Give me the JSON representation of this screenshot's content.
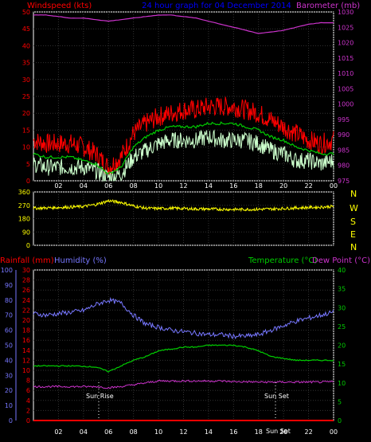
{
  "header": {
    "left": "Windspeed (kts)",
    "center": "24 hour graph for  04 December 2014",
    "right": "Barometer (mb)"
  },
  "colors": {
    "wind": "#ff0000",
    "avgwind": "#00cc00",
    "gust": "#ccffcc",
    "baro": "#cc33cc",
    "dir": "#ffff00",
    "rain": "#ff0000",
    "hum": "#7777ff",
    "temp": "#00cc00",
    "dew": "#cc33cc",
    "grid": "#333333",
    "tick": "#ffffff"
  },
  "x_ticks": [
    "02",
    "04",
    "06",
    "08",
    "10",
    "12",
    "14",
    "16",
    "18",
    "20",
    "22",
    "00"
  ],
  "chart_data": [
    {
      "type": "line",
      "panel": "wind",
      "title": "24 hour graph for  04 December 2014",
      "ylabel": "Windspeed (kts)",
      "ylabel_right": "Barometer (mb)",
      "yticks_left": [
        0,
        5,
        10,
        15,
        20,
        25,
        30,
        35,
        40,
        45,
        50
      ],
      "yticks_right": [
        975,
        980,
        985,
        990,
        995,
        1000,
        1005,
        1010,
        1015,
        1020,
        1025,
        1030
      ],
      "ylim": [
        0,
        50
      ],
      "ylim_right": [
        975,
        1030
      ],
      "x": [
        "00:00",
        "01:00",
        "02:00",
        "03:00",
        "04:00",
        "05:00",
        "06:00",
        "07:00",
        "08:00",
        "09:00",
        "10:00",
        "11:00",
        "12:00",
        "13:00",
        "14:00",
        "15:00",
        "16:00",
        "17:00",
        "18:00",
        "19:00",
        "20:00",
        "21:00",
        "22:00",
        "23:00",
        "24:00"
      ],
      "series": [
        {
          "key": "max",
          "values": [
            12,
            11,
            11,
            11,
            10,
            8,
            4,
            7,
            14,
            17,
            19,
            20,
            21,
            21,
            22,
            22,
            22,
            21,
            20,
            18,
            16,
            14,
            12,
            11,
            12
          ]
        },
        {
          "key": "avg",
          "values": [
            8,
            7,
            7,
            7,
            6,
            5,
            2,
            4,
            10,
            13,
            15,
            16,
            16,
            16,
            17,
            17,
            17,
            16,
            15,
            13,
            12,
            10,
            9,
            8,
            8
          ]
        },
        {
          "key": "low",
          "values": [
            5,
            4,
            4,
            4,
            4,
            3,
            1,
            2,
            7,
            9,
            11,
            12,
            12,
            12,
            13,
            12,
            12,
            12,
            11,
            9,
            8,
            6,
            6,
            5,
            6
          ]
        },
        {
          "key": "baro",
          "values": [
            1029,
            1029,
            1028.5,
            1028,
            1028,
            1027.5,
            1027,
            1027.5,
            1028,
            1028.5,
            1029,
            1029,
            1028.5,
            1028,
            1027,
            1026,
            1025,
            1024,
            1023,
            1023.5,
            1024,
            1025,
            1026,
            1026.5,
            1026.5
          ]
        }
      ]
    },
    {
      "type": "line",
      "panel": "direction",
      "yticks": [
        0,
        90,
        180,
        270,
        360
      ],
      "ylim": [
        0,
        360
      ],
      "compass": [
        "N",
        "W",
        "S",
        "E",
        "N"
      ],
      "series": [
        {
          "key": "dir",
          "values": [
            250,
            252,
            255,
            258,
            262,
            275,
            300,
            290,
            265,
            250,
            248,
            250,
            248,
            245,
            245,
            243,
            242,
            242,
            243,
            245,
            248,
            252,
            255,
            258,
            262
          ]
        }
      ]
    },
    {
      "type": "line",
      "panel": "bottom",
      "labels": {
        "rain": "Rainfall (mm)",
        "hum": "Humidity (%)",
        "temp": "Temperature (°C)",
        "dew": "Dew Point (°C)"
      },
      "yticks_hum": [
        0,
        10,
        20,
        30,
        40,
        50,
        60,
        70,
        80,
        90,
        100
      ],
      "yticks_rain": [
        0,
        2,
        4,
        6,
        8,
        10,
        12,
        14,
        16,
        18,
        20,
        22,
        24,
        26,
        28,
        30
      ],
      "yticks_temp": [
        0,
        5,
        10,
        15,
        20,
        25,
        30,
        35,
        40
      ],
      "ylim_hum": [
        0,
        100
      ],
      "ylim_rain": [
        0,
        30
      ],
      "ylim_temp": [
        0,
        40
      ],
      "sun_rise": "Sun Rise",
      "sun_set": "Sun Set",
      "sun_set_label2": "Sun Set",
      "series": [
        {
          "key": "hum",
          "values": [
            71,
            70,
            71,
            72,
            73,
            77,
            80,
            78,
            70,
            64,
            62,
            60,
            59,
            58,
            57,
            57,
            56,
            56,
            57,
            60,
            63,
            66,
            68,
            70,
            72
          ]
        },
        {
          "key": "temp",
          "values": [
            14.5,
            14.5,
            14.5,
            14.5,
            14.4,
            14.2,
            13,
            14.5,
            16,
            17,
            18.5,
            19,
            19.5,
            19.5,
            20,
            20,
            20,
            19.5,
            18.5,
            17,
            16.5,
            16,
            16,
            16,
            16
          ]
        },
        {
          "key": "dew",
          "values": [
            9,
            9,
            9,
            9,
            9,
            9,
            8.7,
            9,
            9.5,
            10,
            10.5,
            10.5,
            10.5,
            10.5,
            10.5,
            10.5,
            10.3,
            10.3,
            10.2,
            10.2,
            10.2,
            10.2,
            10.2,
            10.2,
            10.3
          ]
        },
        {
          "key": "rain",
          "values": [
            0,
            0,
            0,
            0,
            0,
            0,
            0,
            0,
            0,
            0,
            0,
            0,
            0,
            0,
            0,
            0,
            0,
            0,
            0,
            0,
            0,
            0,
            0,
            0,
            0
          ]
        }
      ]
    }
  ]
}
